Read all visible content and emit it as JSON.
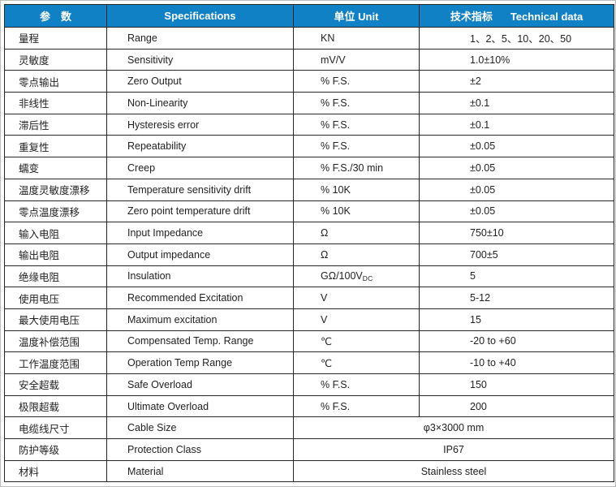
{
  "page": {
    "frame_border": "#bdbdbd",
    "background": "#ffffff"
  },
  "table": {
    "colors": {
      "header_bg": "#1181c5",
      "header_text": "#ffffff",
      "border": "#262626",
      "text": "#212121"
    },
    "header": {
      "param": "参　数",
      "spec": "Specifications",
      "unit": "单位 Unit",
      "tech_zh": "技术指标",
      "tech_en": "Technical data"
    },
    "rows": [
      {
        "zh": "量程",
        "en": "Range",
        "unit": "KN",
        "value": "1、2、5、10、20、50"
      },
      {
        "zh": "灵敏度",
        "en": "Sensitivity",
        "unit": "mV/V",
        "value": "1.0±10%"
      },
      {
        "zh": "零点输出",
        "en": "Zero Output",
        "unit": "% F.S.",
        "value": "±2"
      },
      {
        "zh": "非线性",
        "en": "Non-Linearity",
        "unit": "% F.S.",
        "value": "±0.1"
      },
      {
        "zh": "滞后性",
        "en": "Hysteresis error",
        "unit": "% F.S.",
        "value": "±0.1"
      },
      {
        "zh": "重复性",
        "en": "Repeatability",
        "unit": "% F.S.",
        "value": "±0.05"
      },
      {
        "zh": "蠕变",
        "en": "Creep",
        "unit": "% F.S./30 min",
        "value": "±0.05"
      },
      {
        "zh": "温度灵敏度漂移",
        "en": "Temperature sensitivity drift",
        "unit": "% 10K",
        "value": "±0.05"
      },
      {
        "zh": "零点温度漂移",
        "en": "Zero point temperature drift",
        "unit": "% 10K",
        "value": "±0.05"
      },
      {
        "zh": "输入电阻",
        "en": "Input Impedance",
        "unit": "Ω",
        "value": "750±10"
      },
      {
        "zh": "输出电阻",
        "en": "Output impedance",
        "unit": "Ω",
        "value": "700±5"
      },
      {
        "zh": "绝缘电阻",
        "en": "Insulation",
        "unit": "GΩ/100V",
        "unit_sub": "DC",
        "value": "5"
      },
      {
        "zh": "使用电压",
        "en": "Recommended Excitation",
        "unit": "V",
        "value": "5-12"
      },
      {
        "zh": "最大使用电压",
        "en": "Maximum excitation",
        "unit": "V",
        "value": "15"
      },
      {
        "zh": "温度补偿范围",
        "en": "Compensated Temp. Range",
        "unit": "℃",
        "value": "-20 to +60"
      },
      {
        "zh": "工作温度范围",
        "en": "Operation Temp Range",
        "unit": "℃",
        "value": "-10 to +40"
      },
      {
        "zh": "安全超载",
        "en": "Safe Overload",
        "unit": "% F.S.",
        "value": "150"
      },
      {
        "zh": "极限超载",
        "en": "Ultimate Overload",
        "unit": "% F.S.",
        "value": "200"
      }
    ],
    "merged_rows": [
      {
        "zh": "电缆线尺寸",
        "en": "Cable Size",
        "value": "φ3×3000 mm"
      },
      {
        "zh": "防护等级",
        "en": "Protection Class",
        "value": "IP67"
      },
      {
        "zh": "材料",
        "en": "Material",
        "value": "Stainless steel"
      }
    ]
  }
}
